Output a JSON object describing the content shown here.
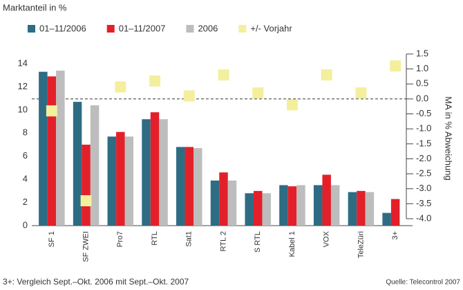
{
  "chart_data": {
    "type": "bar",
    "title": "Marktanteil in %",
    "y2_label": "MA in % Abweichung",
    "footnote": "3+: Vergleich Sept.–Okt. 2006 mit Sept.–Okt. 2007",
    "source": "Quelle: Telecontrol 2007",
    "categories": [
      "SF 1",
      "SF ZWEI",
      "Pro7",
      "RTL",
      "Sat1",
      "RTL 2",
      "S RTL",
      "Kabel 1",
      "VOX",
      "TeleZüri",
      "3+"
    ],
    "series": [
      {
        "name": "01–11/2006",
        "color": "#2e6c84",
        "values": [
          13.3,
          10.7,
          7.7,
          9.2,
          6.8,
          3.9,
          2.8,
          3.5,
          3.5,
          2.9,
          1.1
        ]
      },
      {
        "name": "01–11/2007",
        "color": "#e3202a",
        "values": [
          12.9,
          7.0,
          8.1,
          9.8,
          6.8,
          4.6,
          3.0,
          3.4,
          4.4,
          3.0,
          2.3
        ]
      },
      {
        "name": "2006",
        "color": "#bdbdbd",
        "values": [
          13.4,
          10.4,
          7.7,
          9.2,
          6.7,
          3.9,
          2.8,
          3.5,
          3.5,
          2.9,
          null
        ]
      },
      {
        "name": "+/- Vorjahr",
        "color": "#f3ef9c",
        "axis": "y2",
        "values": [
          -0.4,
          -3.4,
          0.4,
          0.6,
          0.1,
          0.8,
          0.2,
          -0.2,
          0.8,
          0.2,
          1.1
        ]
      }
    ],
    "ylim": [
      0,
      14
    ],
    "yticks": [
      0,
      2,
      4,
      6,
      8,
      10,
      12,
      14
    ],
    "y2lim": [
      -4.0,
      1.5
    ],
    "y2ticks": [
      1.5,
      {
        "value": 1.0,
        "label": "1.0"
      },
      0.5,
      {
        "value": 0.0,
        "label": "0.0"
      },
      -0.5,
      {
        "value": -1.0,
        "label": "-1.0"
      },
      -1.5,
      {
        "value": -2.0,
        "label": "-2.0"
      },
      -2.5,
      {
        "value": -3.0,
        "label": "-3.0"
      },
      -3.5,
      {
        "value": -4.0,
        "label": "-4.0"
      }
    ]
  }
}
